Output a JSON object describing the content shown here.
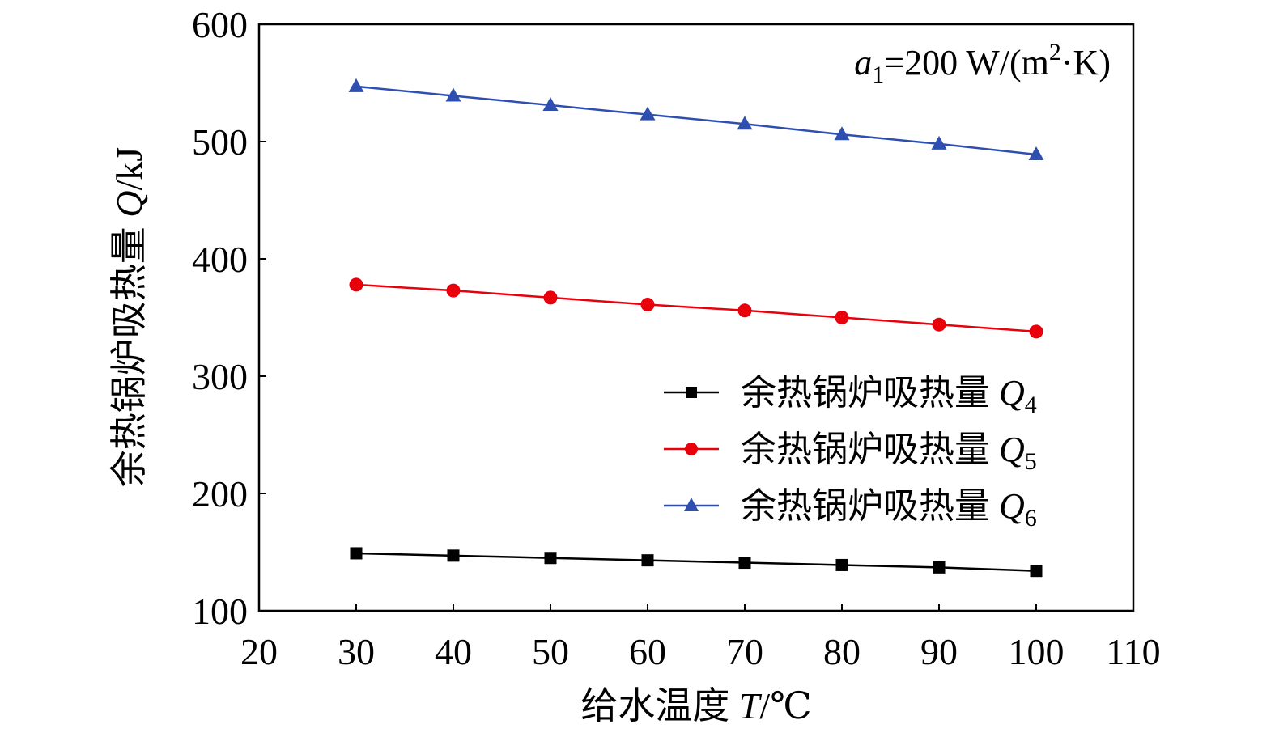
{
  "chart_data": {
    "type": "line",
    "annotation": {
      "var": "a",
      "sub": "1",
      "mid": "=200 W/(m",
      "sup": "2",
      "end": "·K)"
    },
    "xaxis": {
      "label_text": "给水温度",
      "label_var": "T",
      "label_unit": "/℃",
      "ticks": [
        20,
        30,
        40,
        50,
        60,
        70,
        80,
        90,
        100,
        110
      ],
      "lim": [
        20,
        110
      ]
    },
    "yaxis": {
      "label_text": "余热锅炉吸热量",
      "label_var": "Q",
      "label_unit": "/kJ",
      "ticks": [
        100,
        200,
        300,
        400,
        500,
        600
      ],
      "lim": [
        100,
        600
      ]
    },
    "legend_position": "center-right",
    "x": [
      30,
      40,
      50,
      60,
      70,
      80,
      90,
      100
    ],
    "series": [
      {
        "name": "余热锅炉吸热量",
        "var": "Q",
        "sub": "4",
        "color": "#000000",
        "marker": "square",
        "values": [
          149,
          147,
          145,
          143,
          141,
          139,
          137,
          134
        ]
      },
      {
        "name": "余热锅炉吸热量",
        "var": "Q",
        "sub": "5",
        "color": "#e8000b",
        "marker": "circle",
        "values": [
          378,
          373,
          367,
          361,
          356,
          350,
          344,
          338
        ]
      },
      {
        "name": "余热锅炉吸热量",
        "var": "Q",
        "sub": "6",
        "color": "#2f4fb0",
        "marker": "triangle",
        "values": [
          547,
          539,
          531,
          523,
          515,
          506,
          498,
          489
        ]
      }
    ]
  }
}
